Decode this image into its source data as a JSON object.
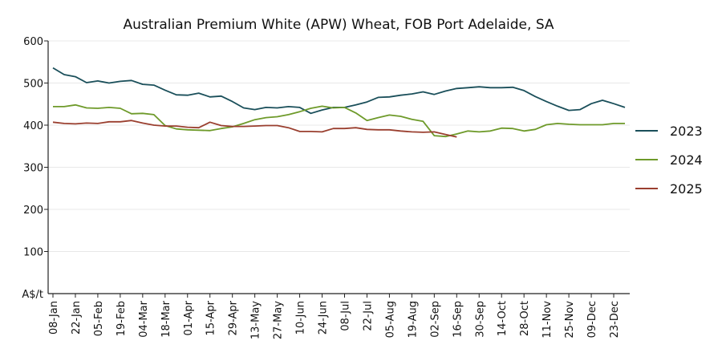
{
  "chart_data": {
    "type": "line",
    "title": "Australian Premium White (APW) Wheat, FOB Port Adelaide, SA",
    "ylabel": "A$/t",
    "ylim": [
      0,
      600
    ],
    "yticks": [
      100,
      200,
      300,
      400,
      500,
      600
    ],
    "x_tick_labels": [
      "08-Jan",
      "22-Jan",
      "05-Feb",
      "19-Feb",
      "04-Mar",
      "18-Mar",
      "01-Apr",
      "15-Apr",
      "29-Apr",
      "13-May",
      "27-May",
      "10-Jun",
      "24-Jun",
      "08-Jul",
      "22-Jul",
      "05-Aug",
      "19-Aug",
      "02-Sep",
      "16-Sep",
      "30-Sep",
      "14-Oct",
      "28-Oct",
      "11-Nov",
      "25-Nov",
      "09-Dec",
      "23-Dec"
    ],
    "grid": true,
    "legend_position": "right",
    "series": [
      {
        "name": "2023",
        "color": "#1a4f5a",
        "values": [
          536,
          520,
          515,
          501,
          505,
          500,
          504,
          506,
          497,
          495,
          483,
          472,
          471,
          476,
          467,
          469,
          456,
          441,
          437,
          442,
          441,
          444,
          442,
          428,
          436,
          442,
          442,
          448,
          455,
          466,
          467,
          471,
          474,
          479,
          473,
          481,
          487,
          489,
          491,
          489,
          489,
          490,
          482,
          468,
          456,
          445,
          435,
          437,
          451,
          459,
          451,
          442
        ]
      },
      {
        "name": "2024",
        "color": "#6e9a2a",
        "values": [
          444,
          444,
          448,
          441,
          440,
          442,
          440,
          427,
          428,
          425,
          399,
          391,
          389,
          388,
          387,
          392,
          396,
          404,
          413,
          418,
          420,
          425,
          432,
          440,
          445,
          441,
          442,
          429,
          411,
          418,
          424,
          421,
          414,
          409,
          375,
          373,
          379,
          386,
          384,
          386,
          393,
          392,
          386,
          390,
          401,
          404,
          402,
          401,
          401,
          401,
          404,
          404
        ]
      },
      {
        "name": "2025",
        "color": "#9a3f2f",
        "values": [
          407,
          404,
          403,
          405,
          404,
          408,
          408,
          411,
          405,
          400,
          398,
          398,
          395,
          394,
          407,
          399,
          397,
          397,
          398,
          399,
          399,
          394,
          385,
          385,
          384,
          392,
          392,
          394,
          390,
          389,
          389,
          386,
          384,
          383,
          384,
          378,
          372
        ]
      }
    ]
  }
}
